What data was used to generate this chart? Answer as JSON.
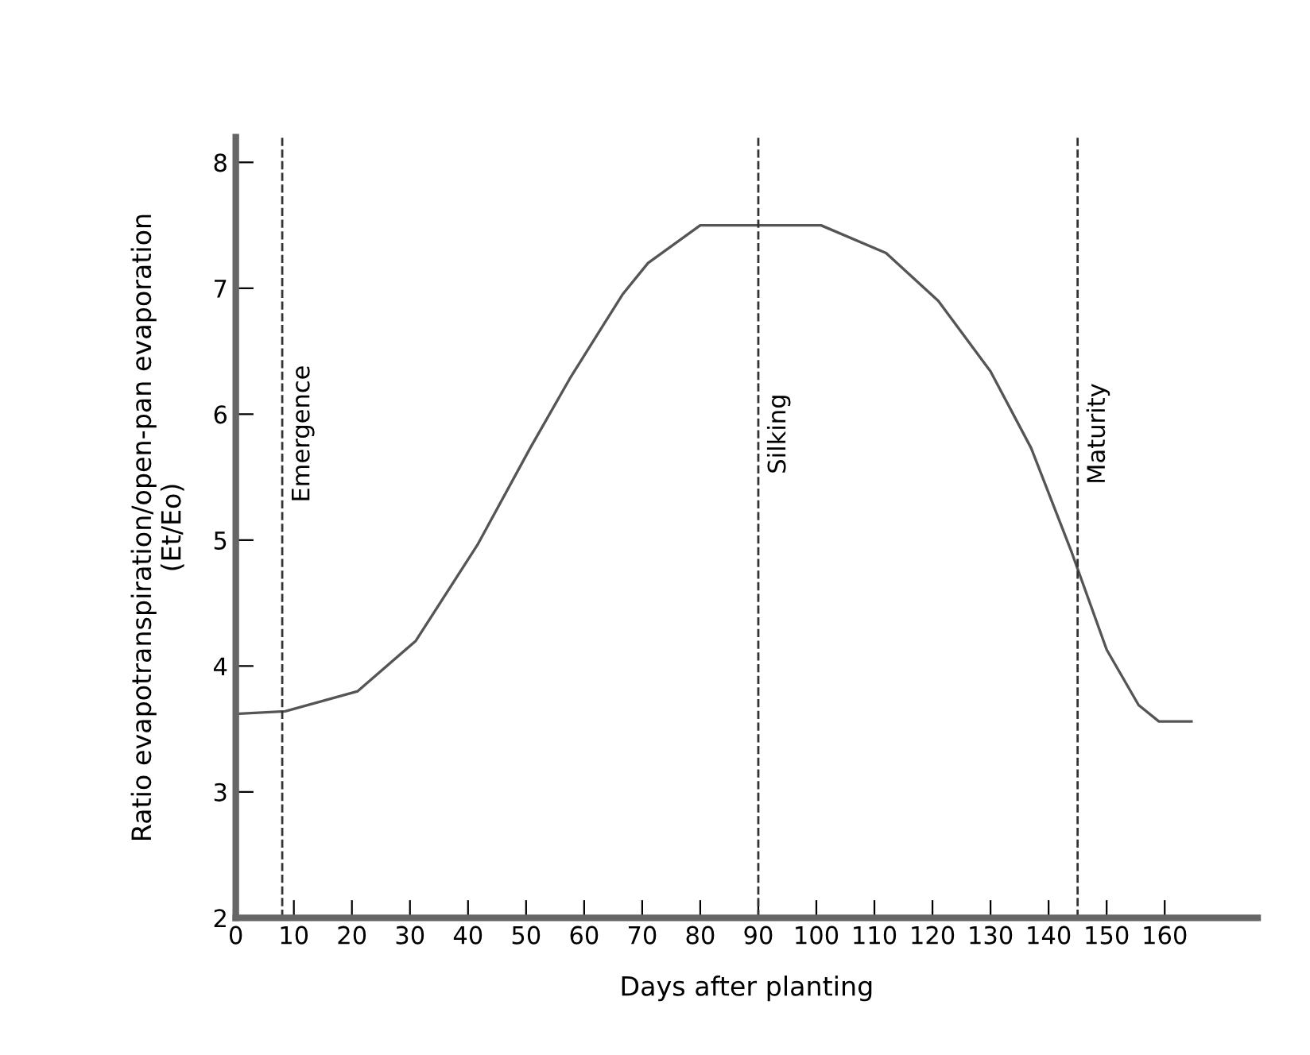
{
  "chart_data": {
    "type": "line",
    "xlabel": "Days after planting",
    "ylabel": "Ratio evapotranspiration/open-pan evaporation\n(Et/Eo)",
    "x": [
      0,
      8.5,
      21,
      31,
      41.6,
      50.7,
      57.5,
      66.6,
      71,
      80,
      100.8,
      112,
      121,
      130,
      137,
      144,
      150,
      155.5,
      159,
      164.6
    ],
    "values": [
      3.62,
      3.64,
      3.8,
      4.2,
      4.96,
      5.73,
      6.28,
      6.95,
      7.2,
      7.5,
      7.5,
      7.28,
      6.9,
      6.34,
      5.73,
      4.9,
      4.13,
      3.69,
      3.56,
      3.56
    ],
    "color": "#555555",
    "marker": "none",
    "line_style": "solid",
    "xlim": [
      0,
      176
    ],
    "ylim": [
      2,
      8.2
    ],
    "xticks": [
      0,
      10,
      20,
      30,
      40,
      50,
      60,
      70,
      80,
      90,
      100,
      110,
      120,
      130,
      140,
      150,
      160
    ],
    "yticks": [
      2,
      3,
      4,
      5,
      6,
      7,
      8
    ],
    "ref_lines": [
      {
        "axis": "x",
        "value": 8,
        "label": "Emergence",
        "line_style": "dashed",
        "color": "#333333"
      },
      {
        "axis": "x",
        "value": 90,
        "label": "Silking",
        "line_style": "dashed",
        "color": "#333333"
      },
      {
        "axis": "x",
        "value": 145,
        "label": "Maturity",
        "line_style": "dashed",
        "color": "#333333"
      }
    ],
    "grid": false,
    "legend": false
  }
}
